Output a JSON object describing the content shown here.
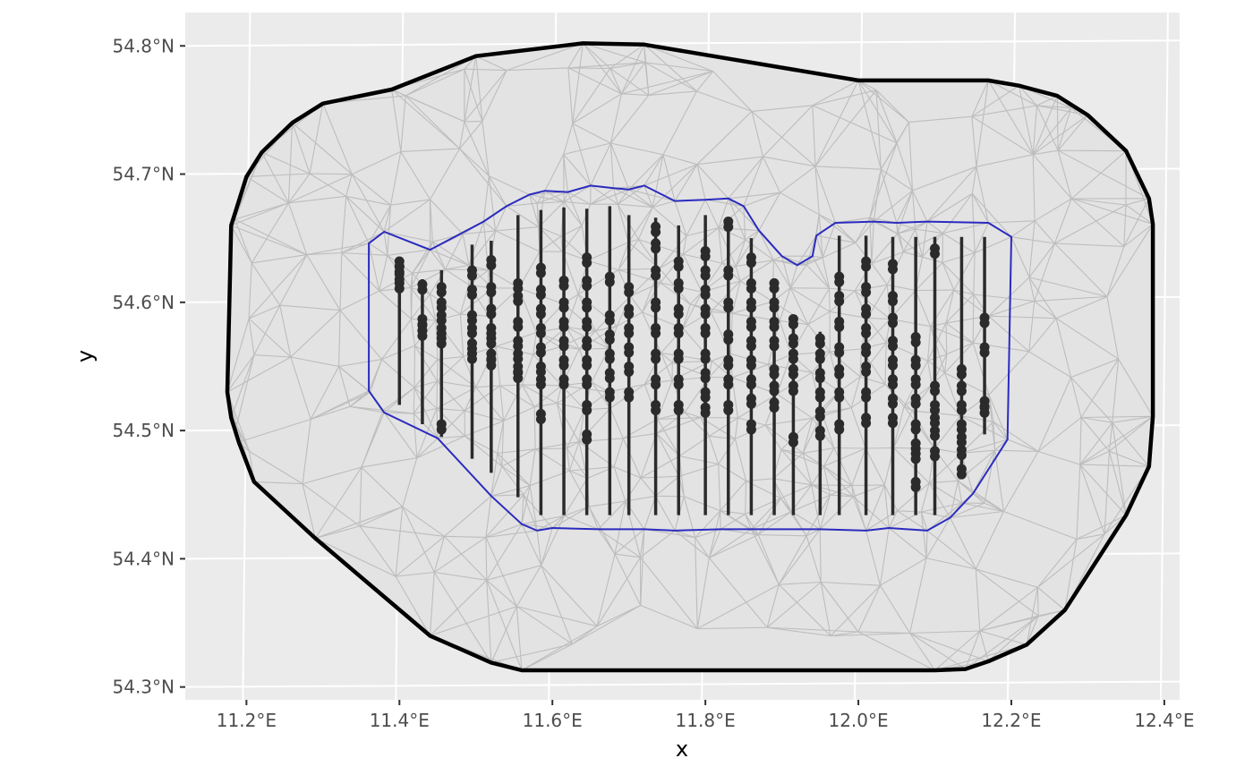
{
  "chart_data": {
    "type": "scatter",
    "title": "",
    "xlabel": "x",
    "ylabel": "y",
    "xlim": [
      11.12,
      12.42
    ],
    "ylim": [
      54.29,
      54.826
    ],
    "x_ticks": [
      {
        "value": 11.2,
        "label": "11.2°E"
      },
      {
        "value": 11.4,
        "label": "11.4°E"
      },
      {
        "value": 11.6,
        "label": "11.6°E"
      },
      {
        "value": 11.8,
        "label": "11.8°E"
      },
      {
        "value": 12.0,
        "label": "12.0°E"
      },
      {
        "value": 12.2,
        "label": "12.2°E"
      },
      {
        "value": 12.4,
        "label": "12.4°E"
      }
    ],
    "y_ticks": [
      {
        "value": 54.3,
        "label": "54.3°N"
      },
      {
        "value": 54.4,
        "label": "54.4°N"
      },
      {
        "value": 54.5,
        "label": "54.5°N"
      },
      {
        "value": 54.6,
        "label": "54.6°N"
      },
      {
        "value": 54.7,
        "label": "54.7°N"
      },
      {
        "value": 54.8,
        "label": "54.8°N"
      }
    ],
    "grid": true,
    "colors": {
      "panel": "#ebebeb",
      "grid": "#ffffff",
      "mesh_fill": "#e3e3e3",
      "mesh_edge": "#bdbdbd",
      "outer_boundary": "#000000",
      "inner_boundary": "#2b2bbf",
      "points": "#2b2b2b"
    },
    "outer_boundary": [
      [
        11.18,
        54.66
      ],
      [
        11.2,
        54.698
      ],
      [
        11.22,
        54.717
      ],
      [
        11.26,
        54.74
      ],
      [
        11.3,
        54.755
      ],
      [
        11.39,
        54.766
      ],
      [
        11.5,
        54.792
      ],
      [
        11.64,
        54.802
      ],
      [
        11.72,
        54.801
      ],
      [
        12.0,
        54.773
      ],
      [
        12.17,
        54.773
      ],
      [
        12.21,
        54.769
      ],
      [
        12.26,
        54.761
      ],
      [
        12.3,
        54.746
      ],
      [
        12.35,
        54.718
      ],
      [
        12.38,
        54.681
      ],
      [
        12.385,
        54.661
      ],
      [
        12.385,
        54.511
      ],
      [
        12.38,
        54.472
      ],
      [
        12.35,
        54.434
      ],
      [
        12.27,
        54.36
      ],
      [
        12.22,
        54.333
      ],
      [
        12.17,
        54.32
      ],
      [
        12.14,
        54.314
      ],
      [
        12.1,
        54.313
      ],
      [
        11.56,
        54.313
      ],
      [
        11.52,
        54.319
      ],
      [
        11.44,
        54.34
      ],
      [
        11.29,
        54.416
      ],
      [
        11.21,
        54.46
      ],
      [
        11.19,
        54.491
      ],
      [
        11.18,
        54.51
      ],
      [
        11.175,
        54.53
      ]
    ],
    "inner_boundary": [
      [
        11.36,
        54.646
      ],
      [
        11.38,
        54.655
      ],
      [
        11.44,
        54.641
      ],
      [
        11.51,
        54.663
      ],
      [
        11.54,
        54.675
      ],
      [
        11.57,
        54.684
      ],
      [
        11.59,
        54.687
      ],
      [
        11.62,
        54.686
      ],
      [
        11.65,
        54.691
      ],
      [
        11.68,
        54.689
      ],
      [
        11.7,
        54.688
      ],
      [
        11.72,
        54.691
      ],
      [
        11.76,
        54.679
      ],
      [
        11.8,
        54.68
      ],
      [
        11.83,
        54.681
      ],
      [
        11.85,
        54.675
      ],
      [
        11.87,
        54.656
      ],
      [
        11.9,
        54.636
      ],
      [
        11.92,
        54.629
      ],
      [
        11.94,
        54.636
      ],
      [
        11.945,
        54.652
      ],
      [
        11.97,
        54.662
      ],
      [
        12.02,
        54.663
      ],
      [
        12.05,
        54.662
      ],
      [
        12.09,
        54.663
      ],
      [
        12.17,
        54.662
      ],
      [
        12.2,
        54.651
      ],
      [
        12.195,
        54.493
      ],
      [
        12.15,
        54.451
      ],
      [
        12.12,
        54.432
      ],
      [
        12.09,
        54.422
      ],
      [
        12.04,
        54.424
      ],
      [
        12.01,
        54.422
      ],
      [
        11.95,
        54.423
      ],
      [
        11.86,
        54.423
      ],
      [
        11.82,
        54.423
      ],
      [
        11.76,
        54.422
      ],
      [
        11.72,
        54.423
      ],
      [
        11.66,
        54.423
      ],
      [
        11.6,
        54.424
      ],
      [
        11.58,
        54.422
      ],
      [
        11.56,
        54.427
      ],
      [
        11.52,
        54.449
      ],
      [
        11.45,
        54.494
      ],
      [
        11.38,
        54.514
      ],
      [
        11.36,
        54.531
      ]
    ],
    "transect_lines": [
      {
        "x": 11.4,
        "y": [
          54.52,
          54.632
        ]
      },
      {
        "x": 11.43,
        "y": [
          54.505,
          54.618
        ]
      },
      {
        "x": 11.455,
        "y": [
          54.495,
          54.625
        ]
      },
      {
        "x": 11.495,
        "y": [
          54.478,
          54.645
        ]
      },
      {
        "x": 11.52,
        "y": [
          54.467,
          54.648
        ]
      },
      {
        "x": 11.555,
        "y": [
          54.448,
          54.668
        ]
      },
      {
        "x": 11.585,
        "y": [
          54.434,
          54.672
        ]
      },
      {
        "x": 11.615,
        "y": [
          54.434,
          54.674
        ]
      },
      {
        "x": 11.645,
        "y": [
          54.434,
          54.673
        ]
      },
      {
        "x": 11.675,
        "y": [
          54.434,
          54.675
        ]
      },
      {
        "x": 11.7,
        "y": [
          54.434,
          54.668
        ]
      },
      {
        "x": 11.735,
        "y": [
          54.434,
          54.666
        ]
      },
      {
        "x": 11.765,
        "y": [
          54.434,
          54.66
        ]
      },
      {
        "x": 11.8,
        "y": [
          54.434,
          54.668
        ]
      },
      {
        "x": 11.83,
        "y": [
          54.434,
          54.664
        ]
      },
      {
        "x": 11.86,
        "y": [
          54.434,
          54.65
        ]
      },
      {
        "x": 11.89,
        "y": [
          54.434,
          54.618
        ]
      },
      {
        "x": 11.915,
        "y": [
          54.434,
          54.588
        ]
      },
      {
        "x": 11.95,
        "y": [
          54.434,
          54.577
        ]
      },
      {
        "x": 11.975,
        "y": [
          54.434,
          54.652
        ]
      },
      {
        "x": 12.01,
        "y": [
          54.434,
          54.652
        ]
      },
      {
        "x": 12.045,
        "y": [
          54.434,
          54.651
        ]
      },
      {
        "x": 12.075,
        "y": [
          54.434,
          54.651
        ]
      },
      {
        "x": 12.1,
        "y": [
          54.434,
          54.651
        ]
      },
      {
        "x": 12.135,
        "y": [
          54.468,
          54.651
        ]
      },
      {
        "x": 12.165,
        "y": [
          54.497,
          54.651
        ]
      }
    ],
    "series": [
      {
        "x": 11.4,
        "y": [
          54.632,
          54.628,
          54.622,
          54.615
        ]
      },
      {
        "x": 11.43,
        "y": [
          54.614,
          54.587,
          54.582,
          54.578
        ]
      },
      {
        "x": 11.455,
        "y": [
          54.612,
          54.6,
          54.59,
          54.58,
          54.572,
          54.505
        ]
      },
      {
        "x": 11.495,
        "y": [
          54.625,
          54.61,
          54.59,
          54.58,
          54.568,
          54.56
        ]
      },
      {
        "x": 11.52,
        "y": [
          54.633,
          54.612,
          54.595,
          54.58,
          54.572,
          54.56,
          54.555
        ]
      },
      {
        "x": 11.555,
        "y": [
          54.615,
          54.605,
          54.585,
          54.57,
          54.56,
          54.55,
          54.545
        ]
      },
      {
        "x": 11.585,
        "y": [
          54.627,
          54.61,
          54.595,
          54.58,
          54.565,
          54.55,
          54.54,
          54.513
        ]
      },
      {
        "x": 11.615,
        "y": [
          54.617,
          54.6,
          54.585,
          54.57,
          54.555,
          54.54
        ]
      },
      {
        "x": 11.645,
        "y": [
          54.635,
          54.617,
          54.6,
          54.585,
          54.57,
          54.555,
          54.54,
          54.52,
          54.497
        ]
      },
      {
        "x": 11.675,
        "y": [
          54.62,
          54.59,
          54.575,
          54.56,
          54.545,
          54.53
        ]
      },
      {
        "x": 11.7,
        "y": [
          54.612,
          54.595,
          54.58,
          54.565,
          54.55,
          54.53
        ]
      },
      {
        "x": 11.735,
        "y": [
          54.659,
          54.646,
          54.625,
          54.6,
          54.58,
          54.56,
          54.54,
          54.52
        ]
      },
      {
        "x": 11.765,
        "y": [
          54.632,
          54.615,
          54.595,
          54.58,
          54.56,
          54.54,
          54.52
        ]
      },
      {
        "x": 11.8,
        "y": [
          54.64,
          54.625,
          54.61,
          54.595,
          54.58,
          54.56,
          54.545,
          54.53,
          54.518
        ]
      },
      {
        "x": 11.83,
        "y": [
          54.663,
          54.625,
          54.6,
          54.575,
          54.555,
          54.54,
          54.52
        ]
      },
      {
        "x": 11.86,
        "y": [
          54.635,
          54.615,
          54.6,
          54.585,
          54.57,
          54.555,
          54.54,
          54.525,
          54.505
        ]
      },
      {
        "x": 11.89,
        "y": [
          54.615,
          54.6,
          54.585,
          54.57,
          54.548,
          54.535,
          54.522
        ]
      },
      {
        "x": 11.915,
        "y": [
          54.587,
          54.572,
          54.56,
          54.548,
          54.535,
          54.495
        ]
      },
      {
        "x": 11.95,
        "y": [
          54.572,
          54.56,
          54.545,
          54.53,
          54.515,
          54.5
        ]
      },
      {
        "x": 11.975,
        "y": [
          54.62,
          54.605,
          54.585,
          54.565,
          54.548,
          54.53,
          54.505
        ]
      },
      {
        "x": 12.01,
        "y": [
          54.632,
          54.612,
          54.595,
          54.58,
          54.565,
          54.55,
          54.53,
          54.51
        ]
      },
      {
        "x": 12.045,
        "y": [
          54.63,
          54.605,
          54.588,
          54.57,
          54.555,
          54.54,
          54.525,
          54.51
        ]
      },
      {
        "x": 12.075,
        "y": [
          54.573,
          54.555,
          54.54,
          54.525,
          54.505,
          54.49,
          54.482,
          54.46
        ]
      },
      {
        "x": 12.1,
        "y": [
          54.642,
          54.535,
          54.52,
          54.51,
          54.5,
          54.484
        ]
      },
      {
        "x": 12.135,
        "y": [
          54.548,
          54.535,
          54.52,
          54.505,
          54.495,
          54.485,
          54.47
        ]
      },
      {
        "x": 12.165,
        "y": [
          54.588,
          54.565,
          54.523,
          54.518
        ]
      }
    ]
  }
}
